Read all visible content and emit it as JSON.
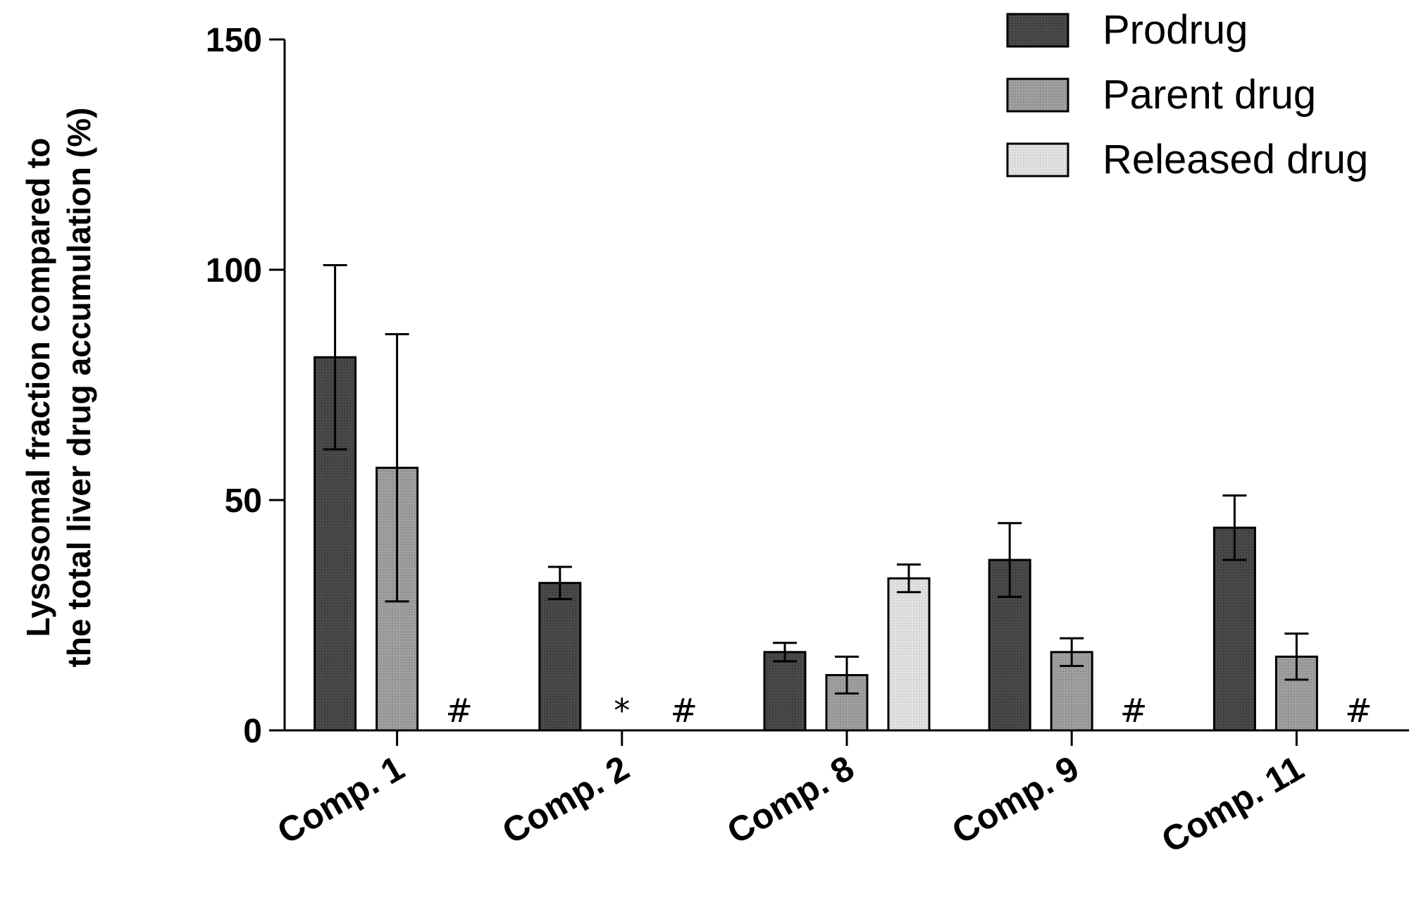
{
  "chart_data": {
    "type": "bar",
    "title": "",
    "xlabel": "",
    "ylabel_lines": [
      "Lysosomal fraction compared to",
      "the total liver drug accumulation (%)"
    ],
    "ylim": [
      0,
      150
    ],
    "yticks": [
      "0",
      "50",
      "100",
      "150"
    ],
    "categories": [
      "Comp. 1",
      "Comp. 2",
      "Comp. 8",
      "Comp. 9",
      "Comp. 11"
    ],
    "series": [
      {
        "name": "Prodrug",
        "color": "#4a4a4a",
        "values": [
          81,
          32,
          17,
          37,
          44
        ],
        "errors": [
          20,
          3.5,
          2,
          8,
          7
        ]
      },
      {
        "name": "Parent drug",
        "color": "#9a9a9a",
        "values": [
          57,
          null,
          12,
          17,
          16
        ],
        "errors": [
          29,
          null,
          4,
          3,
          5
        ]
      },
      {
        "name": "Released drug",
        "color": "#d8d8d8",
        "values": [
          null,
          null,
          33,
          null,
          null
        ],
        "errors": [
          null,
          null,
          3,
          null,
          null
        ]
      }
    ],
    "annotations": [
      {
        "category": 0,
        "series": 2,
        "text": "#"
      },
      {
        "category": 1,
        "series": 1,
        "text": "*"
      },
      {
        "category": 1,
        "series": 2,
        "text": "#"
      },
      {
        "category": 3,
        "series": 2,
        "text": "#"
      },
      {
        "category": 4,
        "series": 2,
        "text": "#"
      }
    ],
    "legend_position": "top-right",
    "grid": false
  }
}
